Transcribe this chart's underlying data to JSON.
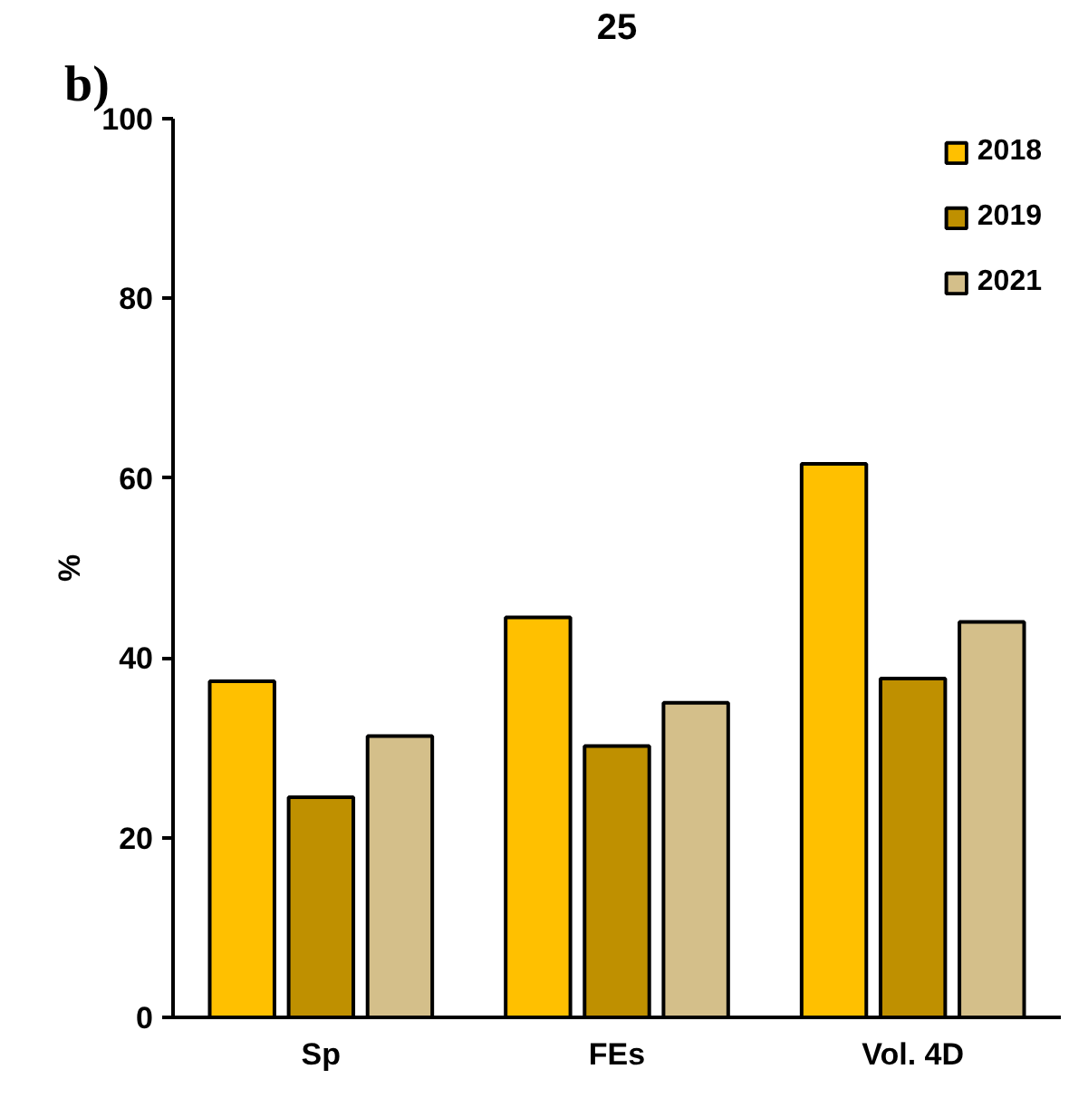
{
  "chart_data": {
    "type": "bar",
    "title": "25",
    "annotations": [
      "b)"
    ],
    "ylabel": "%",
    "categories": [
      "Sp",
      "FEs",
      "Vol. 4D"
    ],
    "series": [
      {
        "name": "2018",
        "color": "#ffc000",
        "values": [
          37.4,
          44.5,
          61.6
        ]
      },
      {
        "name": "2019",
        "color": "#bf9000",
        "values": [
          24.5,
          30.2,
          37.7
        ]
      },
      {
        "name": "2021",
        "color": "#d4bf8a",
        "values": [
          31.3,
          35.0,
          44.0
        ]
      }
    ],
    "ylim": [
      0,
      100
    ],
    "yticks": [
      0,
      20,
      40,
      60,
      80,
      100
    ],
    "grid": false,
    "legend": "top right"
  }
}
